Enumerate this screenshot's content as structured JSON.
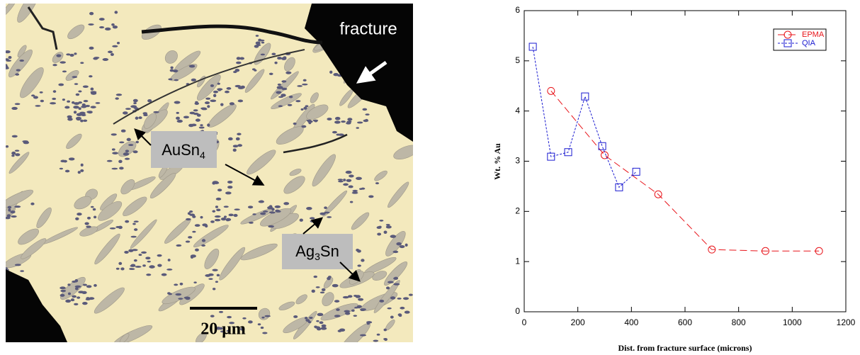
{
  "micrograph": {
    "labels": [
      {
        "text": "fracture"
      },
      {
        "parts": [
          "AuSn",
          "4"
        ]
      },
      {
        "parts": [
          "Ag",
          "3",
          "Sn"
        ]
      }
    ],
    "scale_bar": "20 μm"
  },
  "chart_data": {
    "type": "line",
    "x_label": "Dist. from fracture surface (microns)",
    "y_label": "Wt. % Au",
    "xlim": [
      0,
      1200
    ],
    "xticks": [
      0,
      200,
      400,
      600,
      800,
      1000,
      1200
    ],
    "ylim": [
      0,
      6
    ],
    "yticks": [
      0,
      1,
      2,
      3,
      4,
      5,
      6
    ],
    "legend": "upper right",
    "series": [
      {
        "name": "EPMA",
        "color": "#e8141a",
        "marker": "circle",
        "x": [
          100,
          300,
          500,
          700,
          900,
          1100
        ],
        "values": [
          4.4,
          3.12,
          2.34,
          1.24,
          1.21,
          1.21
        ]
      },
      {
        "name": "QIA",
        "color": "#1a1ad0",
        "marker": "square",
        "x": [
          32,
          100,
          164,
          227,
          291,
          354,
          418
        ],
        "values": [
          5.28,
          3.09,
          3.18,
          4.29,
          3.3,
          2.48,
          2.79
        ]
      }
    ]
  }
}
